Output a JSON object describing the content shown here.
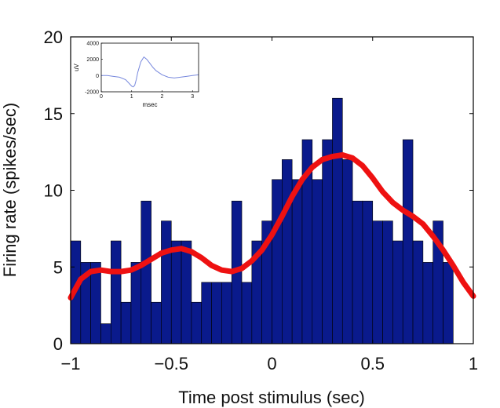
{
  "chart_data": [
    {
      "type": "bar",
      "title": "",
      "xlabel": "Time post stimulus (sec)",
      "ylabel": "Firing rate (spikes/sec)",
      "xlim": [
        -1,
        1
      ],
      "ylim": [
        0,
        20
      ],
      "xticks": [
        -1,
        -0.5,
        0,
        0.5,
        1
      ],
      "xtick_labels": [
        "−1",
        "−0.5",
        "0",
        "0.5",
        "1"
      ],
      "yticks": [
        0,
        5,
        10,
        15,
        20
      ],
      "ytick_labels": [
        "0",
        "5",
        "10",
        "15",
        "20"
      ],
      "bin_width": 0.05,
      "bin_starts": [
        -1.0,
        -0.95,
        -0.9,
        -0.85,
        -0.8,
        -0.75,
        -0.7,
        -0.65,
        -0.6,
        -0.55,
        -0.5,
        -0.45,
        -0.4,
        -0.35,
        -0.3,
        -0.25,
        -0.2,
        -0.15,
        -0.1,
        -0.05,
        0.0,
        0.05,
        0.1,
        0.15,
        0.2,
        0.25,
        0.3,
        0.35,
        0.4,
        0.45,
        0.5,
        0.55,
        0.6,
        0.65,
        0.7,
        0.75,
        0.8,
        0.85,
        0.9,
        0.95
      ],
      "values": [
        6.7,
        5.3,
        5.3,
        1.3,
        6.7,
        2.7,
        5.3,
        9.3,
        2.7,
        8.0,
        6.7,
        6.7,
        2.7,
        4.0,
        4.0,
        4.0,
        9.3,
        4.0,
        6.7,
        8.0,
        10.7,
        12.0,
        10.7,
        13.3,
        10.7,
        13.3,
        16.0,
        12.0,
        9.3,
        9.3,
        8.0,
        8.0,
        6.7,
        13.3,
        6.7,
        5.3,
        8.0,
        5.3,
        0,
        0
      ],
      "bar_color": "#0a1a8c",
      "series": [
        {
          "type": "line",
          "x": [
            -1.0,
            -0.95,
            -0.9,
            -0.85,
            -0.8,
            -0.75,
            -0.7,
            -0.65,
            -0.6,
            -0.55,
            -0.5,
            -0.45,
            -0.4,
            -0.35,
            -0.3,
            -0.25,
            -0.2,
            -0.15,
            -0.1,
            -0.05,
            0.0,
            0.05,
            0.1,
            0.15,
            0.2,
            0.25,
            0.3,
            0.35,
            0.4,
            0.45,
            0.5,
            0.55,
            0.6,
            0.65,
            0.7,
            0.75,
            0.8,
            0.85,
            0.9,
            0.95,
            1.0
          ],
          "values": [
            3.0,
            4.2,
            4.7,
            4.8,
            4.7,
            4.7,
            4.8,
            5.1,
            5.5,
            5.9,
            6.1,
            6.2,
            6.0,
            5.6,
            5.1,
            4.8,
            4.7,
            4.9,
            5.4,
            6.1,
            7.1,
            8.3,
            9.6,
            10.7,
            11.5,
            12.0,
            12.2,
            12.3,
            12.1,
            11.6,
            10.8,
            9.9,
            9.2,
            8.7,
            8.3,
            7.8,
            7.0,
            6.1,
            5.1,
            4.0,
            3.1
          ],
          "color": "#ee1111"
        }
      ]
    },
    {
      "type": "line",
      "title": "",
      "xlabel": "msec",
      "ylabel": "uV",
      "xlim": [
        0,
        3.2
      ],
      "ylim": [
        -2000,
        4000
      ],
      "xticks": [
        0,
        1,
        2,
        3
      ],
      "xtick_labels": [
        "0",
        "1",
        "2",
        "3"
      ],
      "yticks": [
        -2000,
        0,
        2000,
        4000
      ],
      "ytick_labels": [
        "-2000",
        "0",
        "2000",
        "4000"
      ],
      "series": [
        {
          "x": [
            0,
            0.2,
            0.4,
            0.6,
            0.8,
            0.9,
            1.0,
            1.05,
            1.1,
            1.15,
            1.2,
            1.3,
            1.4,
            1.5,
            1.6,
            1.7,
            1.8,
            2.0,
            2.2,
            2.4,
            2.6,
            2.8,
            3.0,
            3.2
          ],
          "values": [
            0,
            0,
            -100,
            -200,
            -500,
            -900,
            -1300,
            -1400,
            -1200,
            -500,
            400,
            1700,
            2300,
            2000,
            1500,
            1000,
            600,
            100,
            -200,
            -300,
            -200,
            -100,
            0,
            100
          ],
          "color": "#7788dd"
        }
      ]
    }
  ]
}
